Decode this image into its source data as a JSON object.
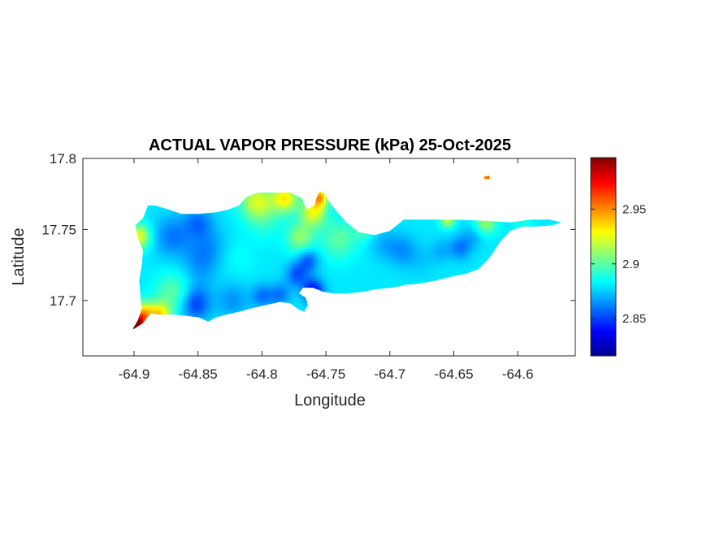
{
  "chart_data": {
    "type": "heatmap",
    "title": "ACTUAL VAPOR PRESSURE (kPa) 25-Oct-2025",
    "xlabel": "Longitude",
    "ylabel": "Latitude",
    "xlim": [
      -64.94,
      -64.555
    ],
    "ylim": [
      17.661,
      17.8
    ],
    "xticks": [
      -64.9,
      -64.85,
      -64.8,
      -64.75,
      -64.7,
      -64.65,
      -64.6
    ],
    "xtick_labels": [
      "-64.9",
      "-64.85",
      "-64.8",
      "-64.75",
      "-64.7",
      "-64.65",
      "-64.6"
    ],
    "yticks": [
      17.7,
      17.75,
      17.8
    ],
    "ytick_labels": [
      "17.7",
      "17.75",
      "17.8"
    ],
    "colorbar": {
      "colormap": "jet",
      "range": [
        2.816,
        2.997
      ],
      "ticks": [
        2.85,
        2.9,
        2.95
      ],
      "tick_labels": [
        "2.85",
        "2.9",
        "2.95"
      ]
    },
    "colormap_stops": [
      "#00008f",
      "#0000ff",
      "#00ffff",
      "#ffff00",
      "#ff0000",
      "#800000"
    ],
    "grid": false,
    "outline": [
      [
        -64.9,
        17.68
      ],
      [
        -64.893,
        17.684
      ],
      [
        -64.887,
        17.691
      ],
      [
        -64.88,
        17.69
      ],
      [
        -64.868,
        17.69
      ],
      [
        -64.857,
        17.689
      ],
      [
        -64.849,
        17.688
      ],
      [
        -64.842,
        17.685
      ],
      [
        -64.836,
        17.688
      ],
      [
        -64.828,
        17.69
      ],
      [
        -64.818,
        17.692
      ],
      [
        -64.806,
        17.695
      ],
      [
        -64.796,
        17.697
      ],
      [
        -64.786,
        17.699
      ],
      [
        -64.778,
        17.698
      ],
      [
        -64.772,
        17.694
      ],
      [
        -64.767,
        17.692
      ],
      [
        -64.764,
        17.697
      ],
      [
        -64.766,
        17.702
      ],
      [
        -64.771,
        17.705
      ],
      [
        -64.768,
        17.709
      ],
      [
        -64.76,
        17.709
      ],
      [
        -64.752,
        17.706
      ],
      [
        -64.744,
        17.705
      ],
      [
        -64.733,
        17.705
      ],
      [
        -64.722,
        17.706
      ],
      [
        -64.71,
        17.708
      ],
      [
        -64.698,
        17.709
      ],
      [
        -64.688,
        17.711
      ],
      [
        -64.676,
        17.712
      ],
      [
        -64.664,
        17.714
      ],
      [
        -64.651,
        17.717
      ],
      [
        -64.64,
        17.719
      ],
      [
        -64.631,
        17.722
      ],
      [
        -64.624,
        17.728
      ],
      [
        -64.619,
        17.734
      ],
      [
        -64.614,
        17.741
      ],
      [
        -64.606,
        17.749
      ],
      [
        -64.596,
        17.752
      ],
      [
        -64.586,
        17.752
      ],
      [
        -64.573,
        17.753
      ],
      [
        -64.566,
        17.755
      ],
      [
        -64.575,
        17.757
      ],
      [
        -64.59,
        17.757
      ],
      [
        -64.605,
        17.755
      ],
      [
        -64.625,
        17.756
      ],
      [
        -64.65,
        17.757
      ],
      [
        -64.67,
        17.757
      ],
      [
        -64.689,
        17.757
      ],
      [
        -64.7,
        17.749
      ],
      [
        -64.712,
        17.746
      ],
      [
        -64.724,
        17.748
      ],
      [
        -64.734,
        17.755
      ],
      [
        -64.741,
        17.762
      ],
      [
        -64.747,
        17.769
      ],
      [
        -64.751,
        17.775
      ],
      [
        -64.755,
        17.777
      ],
      [
        -64.757,
        17.773
      ],
      [
        -64.759,
        17.767
      ],
      [
        -64.765,
        17.764
      ],
      [
        -64.769,
        17.772
      ],
      [
        -64.778,
        17.776
      ],
      [
        -64.79,
        17.776
      ],
      [
        -64.803,
        17.776
      ],
      [
        -64.812,
        17.773
      ],
      [
        -64.818,
        17.767
      ],
      [
        -64.826,
        17.764
      ],
      [
        -64.836,
        17.762
      ],
      [
        -64.849,
        17.761
      ],
      [
        -64.863,
        17.761
      ],
      [
        -64.873,
        17.764
      ],
      [
        -64.884,
        17.767
      ],
      [
        -64.889,
        17.767
      ],
      [
        -64.893,
        17.758
      ],
      [
        -64.899,
        17.753
      ],
      [
        -64.897,
        17.744
      ],
      [
        -64.893,
        17.735
      ],
      [
        -64.894,
        17.724
      ],
      [
        -64.896,
        17.714
      ],
      [
        -64.895,
        17.704
      ],
      [
        -64.894,
        17.694
      ],
      [
        -64.897,
        17.686
      ],
      [
        -64.901,
        17.68
      ]
    ],
    "islet": [
      [
        -64.627,
        17.787
      ],
      [
        -64.622,
        17.788
      ],
      [
        -64.621,
        17.786
      ],
      [
        -64.626,
        17.785
      ]
    ],
    "values": {
      "base": 2.88,
      "anomalies": [
        [
          -64.899,
          17.682,
          0.12,
          0.005
        ],
        [
          -64.893,
          17.69,
          0.06,
          0.006
        ],
        [
          -64.896,
          17.745,
          0.045,
          0.006
        ],
        [
          -64.88,
          17.69,
          0.05,
          0.006
        ],
        [
          -64.87,
          17.705,
          0.02,
          0.01
        ],
        [
          -64.87,
          17.745,
          -0.02,
          0.01
        ],
        [
          -64.85,
          17.755,
          -0.02,
          0.008
        ],
        [
          -64.848,
          17.728,
          -0.015,
          0.01
        ],
        [
          -64.84,
          17.74,
          -0.01,
          0.01
        ],
        [
          -64.852,
          17.697,
          -0.03,
          0.008
        ],
        [
          -64.848,
          17.71,
          -0.005,
          0.008
        ],
        [
          -64.823,
          17.7,
          -0.015,
          0.009
        ],
        [
          -64.82,
          17.73,
          0.005,
          0.01
        ],
        [
          -64.8,
          17.703,
          -0.02,
          0.006
        ],
        [
          -64.786,
          17.704,
          -0.02,
          0.006
        ],
        [
          -64.797,
          17.757,
          0.01,
          0.01
        ],
        [
          -64.804,
          17.77,
          0.04,
          0.009
        ],
        [
          -64.782,
          17.772,
          0.05,
          0.007
        ],
        [
          -64.755,
          17.773,
          0.06,
          0.005
        ],
        [
          -64.76,
          17.762,
          0.045,
          0.007
        ],
        [
          -64.77,
          17.742,
          0.01,
          0.008
        ],
        [
          -64.773,
          17.718,
          -0.025,
          0.006
        ],
        [
          -64.76,
          17.707,
          -0.04,
          0.006
        ],
        [
          -64.764,
          17.728,
          -0.025,
          0.006
        ],
        [
          -64.77,
          17.745,
          0.02,
          0.007
        ],
        [
          -64.74,
          17.743,
          0.02,
          0.01
        ],
        [
          -64.735,
          17.72,
          0.0,
          0.01
        ],
        [
          -64.72,
          17.75,
          0.015,
          0.006
        ],
        [
          -64.705,
          17.74,
          -0.01,
          0.008
        ],
        [
          -64.69,
          17.735,
          -0.015,
          0.008
        ],
        [
          -64.675,
          17.728,
          -0.005,
          0.008
        ],
        [
          -64.66,
          17.735,
          -0.01,
          0.006
        ],
        [
          -64.645,
          17.737,
          -0.02,
          0.006
        ],
        [
          -64.635,
          17.745,
          -0.01,
          0.006
        ],
        [
          -64.625,
          17.755,
          0.03,
          0.006
        ],
        [
          -64.655,
          17.757,
          0.04,
          0.004
        ],
        [
          -64.595,
          17.752,
          0.01,
          0.005
        ],
        [
          -64.58,
          17.754,
          0.0,
          0.005
        ],
        [
          -64.624,
          17.787,
          0.08,
          0.003
        ]
      ]
    }
  }
}
